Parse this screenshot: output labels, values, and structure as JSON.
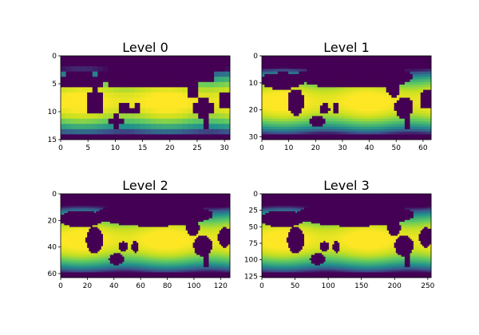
{
  "chart_data": [
    {
      "type": "heatmap",
      "title": "Level 0",
      "grid_cols": 32,
      "grid_rows": 16,
      "xlim": [
        0,
        31
      ],
      "ylim": [
        15,
        0
      ],
      "xticks": [
        0,
        5,
        10,
        15,
        20,
        25,
        30
      ],
      "yticks": [
        0,
        5,
        10,
        15
      ],
      "grid": false,
      "colormap": "viridis"
    },
    {
      "type": "heatmap",
      "title": "Level 1",
      "grid_cols": 64,
      "grid_rows": 32,
      "xlim": [
        0,
        63
      ],
      "ylim": [
        31,
        0
      ],
      "xticks": [
        0,
        10,
        20,
        30,
        40,
        50,
        60
      ],
      "yticks": [
        0,
        10,
        20,
        30
      ],
      "grid": false,
      "colormap": "viridis"
    },
    {
      "type": "heatmap",
      "title": "Level 2",
      "grid_cols": 128,
      "grid_rows": 64,
      "xlim": [
        0,
        127
      ],
      "ylim": [
        63,
        0
      ],
      "xticks": [
        0,
        20,
        40,
        60,
        80,
        100,
        120
      ],
      "yticks": [
        0,
        20,
        40,
        60
      ],
      "grid": false,
      "colormap": "viridis"
    },
    {
      "type": "heatmap",
      "title": "Level 3",
      "grid_cols": 256,
      "grid_rows": 128,
      "xlim": [
        0,
        255
      ],
      "ylim": [
        127,
        0
      ],
      "xticks": [
        0,
        50,
        100,
        150,
        200,
        250
      ],
      "yticks": [
        0,
        25,
        50,
        75,
        100,
        125
      ],
      "grid": false,
      "colormap": "viridis"
    }
  ],
  "colors": {
    "land": "#440154",
    "cold": "#3b528b",
    "mid": "#21918c",
    "warm": "#5ec962",
    "hot": "#fde725"
  }
}
